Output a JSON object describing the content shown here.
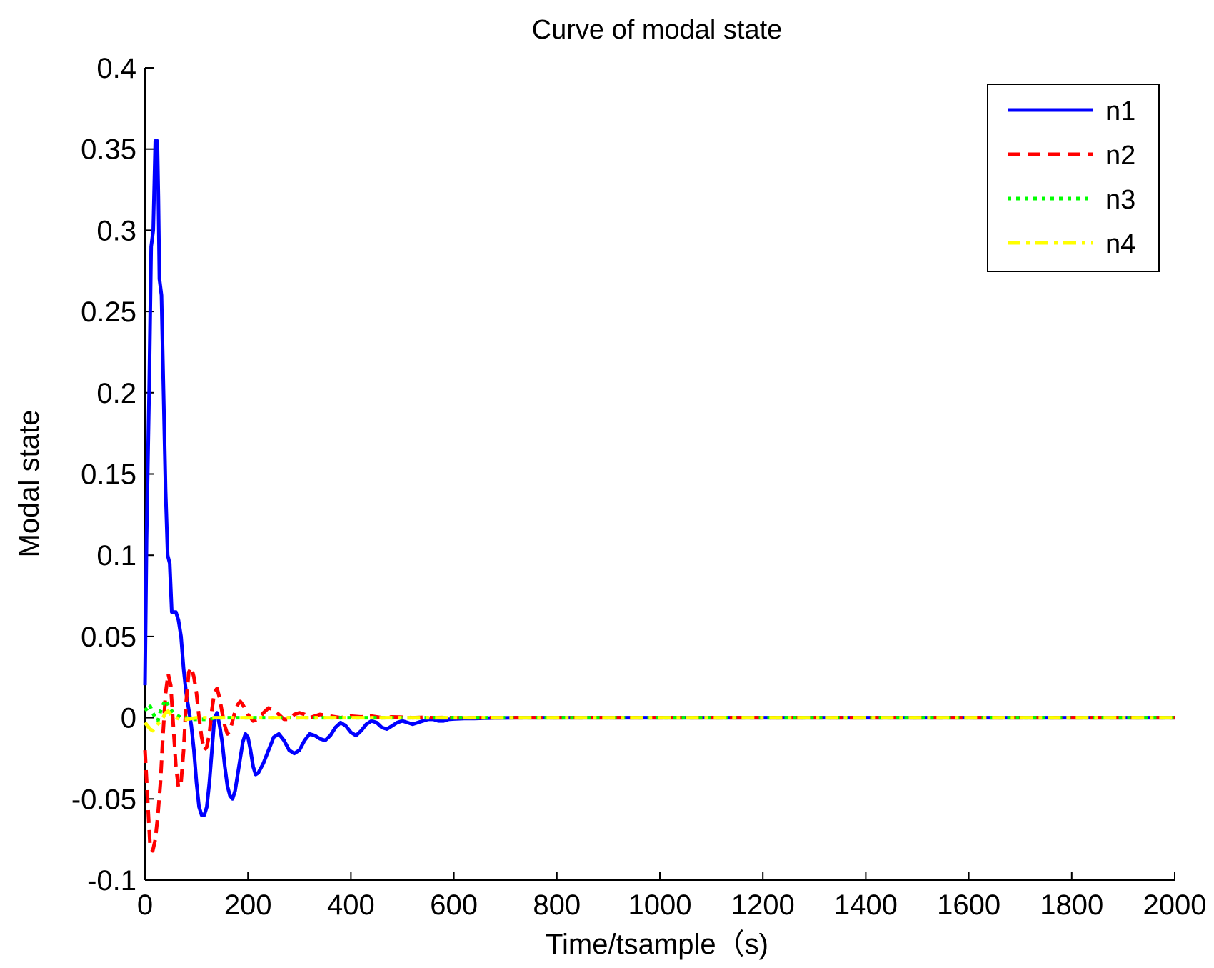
{
  "chart_data": {
    "type": "line",
    "title": "Curve of modal state",
    "xlabel": "Time/tsample（s)",
    "ylabel": "Modal state",
    "xlim": [
      0,
      2000
    ],
    "ylim": [
      -0.1,
      0.4
    ],
    "xticks": [
      0,
      200,
      400,
      600,
      800,
      1000,
      1200,
      1400,
      1600,
      1800,
      2000
    ],
    "xtick_labels": [
      "0",
      "200",
      "400",
      "600",
      "800",
      "1000",
      "1200",
      "1400",
      "1600",
      "1800",
      "2000"
    ],
    "yticks": [
      -0.1,
      -0.05,
      0,
      0.05,
      0.1,
      0.15,
      0.2,
      0.25,
      0.3,
      0.35,
      0.4
    ],
    "ytick_labels": [
      "-0.1",
      "-0.05",
      "0",
      "0.05",
      "0.1",
      "0.15",
      "0.2",
      "0.25",
      "0.3",
      "0.35",
      "0.4"
    ],
    "grid": false,
    "legend_position": "top-right",
    "series": [
      {
        "name": "n1",
        "color": "#0000ff",
        "style": "solid",
        "x": [
          0,
          3,
          8,
          12,
          16,
          20,
          22,
          24,
          26,
          28,
          32,
          36,
          40,
          44,
          48,
          52,
          56,
          60,
          65,
          70,
          75,
          80,
          85,
          90,
          95,
          100,
          105,
          110,
          115,
          120,
          125,
          130,
          135,
          140,
          145,
          150,
          155,
          160,
          165,
          170,
          175,
          180,
          185,
          190,
          195,
          200,
          205,
          210,
          215,
          220,
          230,
          240,
          250,
          260,
          270,
          280,
          290,
          300,
          310,
          320,
          330,
          340,
          350,
          360,
          370,
          380,
          390,
          400,
          410,
          420,
          430,
          440,
          450,
          460,
          470,
          480,
          490,
          500,
          510,
          520,
          530,
          540,
          550,
          560,
          570,
          580,
          590,
          600,
          620,
          640,
          660,
          680,
          700,
          720,
          740,
          760,
          780,
          800,
          820,
          840,
          860,
          880,
          900,
          950,
          1000,
          1050,
          1100,
          1200,
          1400,
          1600,
          1800,
          2000
        ],
        "y": [
          0.02,
          0.11,
          0.2,
          0.29,
          0.3,
          0.355,
          0.33,
          0.355,
          0.32,
          0.27,
          0.26,
          0.2,
          0.14,
          0.1,
          0.095,
          0.065,
          0.065,
          0.065,
          0.06,
          0.05,
          0.03,
          0.015,
          0.005,
          -0.005,
          -0.02,
          -0.04,
          -0.055,
          -0.06,
          -0.06,
          -0.055,
          -0.04,
          -0.02,
          0.0,
          0.003,
          -0.005,
          -0.015,
          -0.03,
          -0.042,
          -0.048,
          -0.05,
          -0.045,
          -0.035,
          -0.025,
          -0.015,
          -0.01,
          -0.012,
          -0.02,
          -0.03,
          -0.035,
          -0.034,
          -0.028,
          -0.02,
          -0.012,
          -0.01,
          -0.014,
          -0.02,
          -0.022,
          -0.02,
          -0.014,
          -0.01,
          -0.011,
          -0.013,
          -0.014,
          -0.011,
          -0.006,
          -0.003,
          -0.005,
          -0.009,
          -0.011,
          -0.008,
          -0.004,
          -0.002,
          -0.003,
          -0.006,
          -0.007,
          -0.005,
          -0.003,
          -0.002,
          -0.003,
          -0.004,
          -0.003,
          -0.002,
          -0.001,
          -0.001,
          -0.002,
          -0.002,
          -0.001,
          -0.0008,
          -0.0005,
          -0.0005,
          -0.0003,
          -0.0002,
          -0.0001,
          0,
          0,
          0,
          0,
          0,
          0,
          0,
          0,
          0,
          0,
          0,
          0,
          0,
          0,
          0,
          0,
          0,
          0,
          0
        ]
      },
      {
        "name": "n2",
        "color": "#ff0000",
        "style": "dashed",
        "x": [
          0,
          5,
          10,
          15,
          20,
          25,
          30,
          35,
          40,
          45,
          50,
          55,
          60,
          65,
          70,
          75,
          80,
          85,
          90,
          95,
          100,
          105,
          110,
          115,
          120,
          125,
          130,
          135,
          140,
          145,
          150,
          155,
          160,
          165,
          170,
          175,
          180,
          185,
          190,
          200,
          210,
          220,
          230,
          240,
          250,
          260,
          270,
          280,
          290,
          300,
          310,
          320,
          340,
          360,
          380,
          400,
          420,
          440,
          460,
          480,
          500,
          520,
          540,
          560,
          580,
          600,
          650,
          700,
          800,
          1000,
          1500,
          2000
        ],
        "y": [
          -0.02,
          -0.05,
          -0.08,
          -0.082,
          -0.075,
          -0.06,
          -0.04,
          -0.01,
          0.015,
          0.027,
          0.02,
          -0.005,
          -0.03,
          -0.043,
          -0.04,
          -0.02,
          0.01,
          0.028,
          0.031,
          0.025,
          0.015,
          0.0,
          -0.012,
          -0.02,
          -0.018,
          -0.01,
          0.005,
          0.016,
          0.018,
          0.012,
          0.003,
          -0.005,
          -0.01,
          -0.008,
          -0.002,
          0.004,
          0.008,
          0.01,
          0.008,
          0.002,
          -0.002,
          -0.001,
          0.003,
          0.006,
          0.005,
          0.002,
          -0.001,
          -0.001,
          0.002,
          0.003,
          0.002,
          0.0,
          0.002,
          0.001,
          0.0,
          0.001,
          0.0005,
          0.001,
          0.0,
          0.0005,
          0.0003,
          0.0,
          0.0002,
          0.0,
          0.0001,
          0,
          0,
          0,
          0,
          0,
          0,
          0
        ]
      },
      {
        "name": "n3",
        "color": "#00ff00",
        "style": "dotted",
        "x": [
          0,
          5,
          10,
          15,
          20,
          25,
          30,
          35,
          40,
          45,
          50,
          55,
          60,
          70,
          80,
          90,
          100,
          120,
          140,
          160,
          200,
          300,
          400,
          600,
          1000,
          1500,
          2000
        ],
        "y": [
          0.006,
          0.004,
          0.007,
          0.003,
          0.0,
          -0.002,
          0.004,
          0.008,
          0.011,
          0.008,
          0.005,
          0.003,
          0.002,
          0.0,
          0.0,
          -0.001,
          -0.001,
          -0.001,
          0.0,
          0.0,
          0.0,
          0.0,
          0.0,
          0.0,
          0.0,
          0.0,
          0.0
        ]
      },
      {
        "name": "n4",
        "color": "#ffff00",
        "style": "dashdot",
        "x": [
          0,
          5,
          10,
          15,
          20,
          25,
          30,
          35,
          40,
          45,
          50,
          60,
          70,
          80,
          100,
          150,
          200,
          400,
          1000,
          2000
        ],
        "y": [
          -0.003,
          -0.005,
          -0.007,
          -0.008,
          -0.006,
          -0.004,
          -0.002,
          0.0,
          0.003,
          0.004,
          0.002,
          0.0,
          -0.001,
          -0.001,
          0.0,
          0.0,
          0.0,
          0.0,
          0.0,
          0.0
        ]
      }
    ]
  }
}
